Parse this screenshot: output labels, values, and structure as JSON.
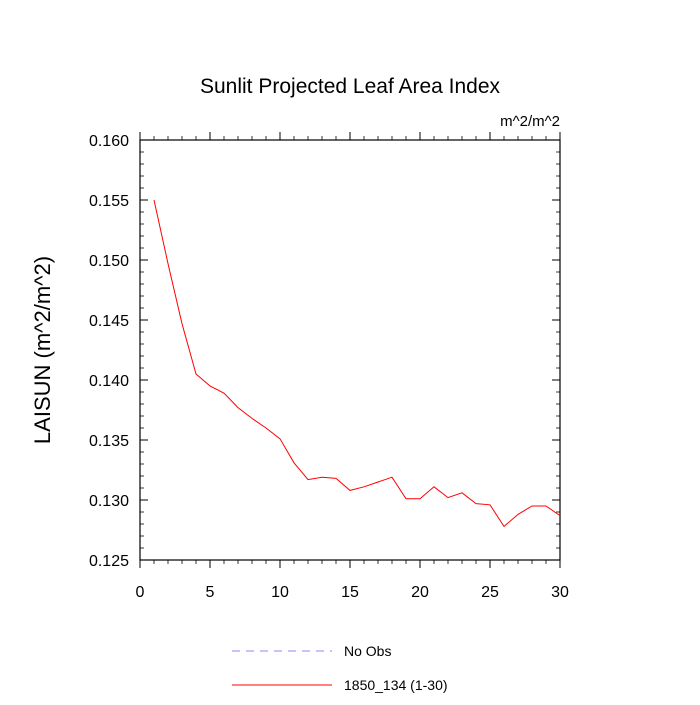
{
  "chart_data": {
    "type": "line",
    "title": "Sunlit Projected Leaf Area Index",
    "units_label": "m^2/m^2",
    "xlabel": "",
    "ylabel": "LAISUN  (m^2/m^2)",
    "xlim": [
      0,
      30
    ],
    "ylim": [
      0.125,
      0.16
    ],
    "x_ticks": [
      0,
      5,
      10,
      15,
      20,
      25,
      30
    ],
    "x_tick_labels": [
      "0",
      "5",
      "10",
      "15",
      "20",
      "25",
      "30"
    ],
    "y_ticks": [
      0.125,
      0.13,
      0.135,
      0.14,
      0.145,
      0.15,
      0.155,
      0.16
    ],
    "y_tick_labels": [
      "0.125",
      "0.130",
      "0.135",
      "0.140",
      "0.145",
      "0.150",
      "0.155",
      "0.160"
    ],
    "grid": false,
    "legend_position": "bottom",
    "series": [
      {
        "name": "No Obs",
        "color": "#8888ff",
        "dash": "dashed",
        "x": [],
        "y": []
      },
      {
        "name": "1850_134 (1-30)",
        "color": "#ff0000",
        "dash": "solid",
        "x": [
          1,
          2,
          3,
          4,
          5,
          6,
          7,
          8,
          9,
          10,
          11,
          12,
          13,
          14,
          15,
          16,
          17,
          18,
          19,
          20,
          21,
          22,
          23,
          24,
          25,
          26,
          27,
          28,
          29,
          30
        ],
        "y": [
          0.155,
          0.1497,
          0.1447,
          0.1405,
          0.1395,
          0.1389,
          0.1377,
          0.1368,
          0.136,
          0.1351,
          0.1331,
          0.1317,
          0.1319,
          0.1318,
          0.1308,
          0.1311,
          0.1315,
          0.1319,
          0.1301,
          0.1301,
          0.1311,
          0.1302,
          0.1306,
          0.1297,
          0.1296,
          0.1278,
          0.1288,
          0.1295,
          0.1295,
          0.1287
        ]
      }
    ]
  }
}
